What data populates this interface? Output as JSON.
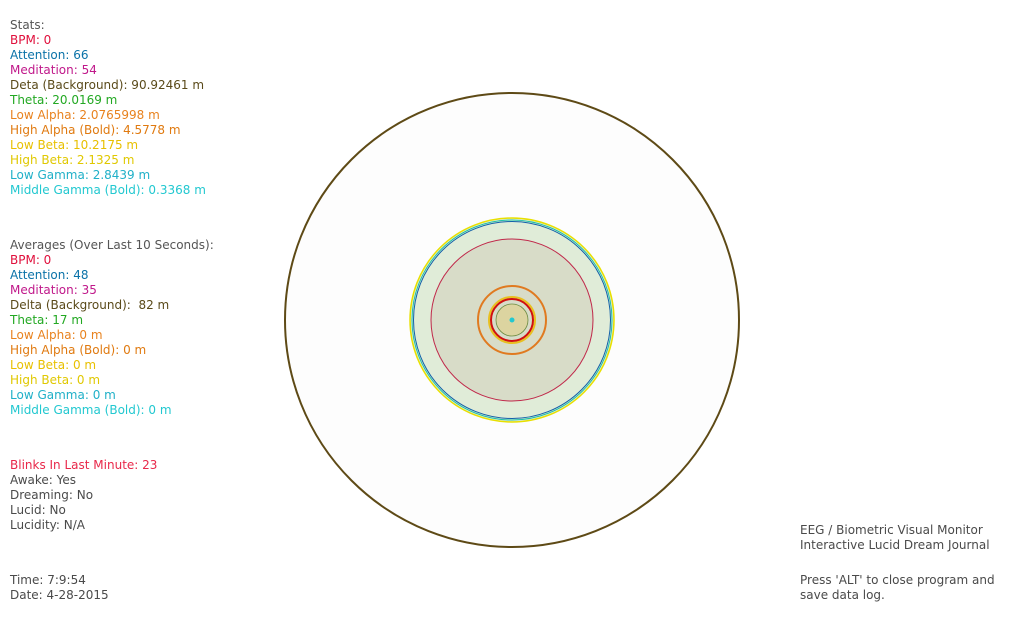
{
  "stats": {
    "heading": "Stats:",
    "items": [
      {
        "text": "BPM: 0",
        "color": "#e0103c"
      },
      {
        "text": "Attention: 66",
        "color": "#0a72a8"
      },
      {
        "text": "Meditation: 54",
        "color": "#c0188a"
      },
      {
        "text": "Deta (Background): 90.92461 m",
        "color": "#5a4a1a"
      },
      {
        "text": "Theta: 20.0169 m",
        "color": "#22a822"
      },
      {
        "text": "Low Alpha: 2.0765998 m",
        "color": "#e8821e"
      },
      {
        "text": "High Alpha (Bold): 4.5778 m",
        "color": "#e07a10"
      },
      {
        "text": "Low Beta: 10.2175 m",
        "color": "#e8c000"
      },
      {
        "text": "High Beta: 2.1325 m",
        "color": "#e0c800"
      },
      {
        "text": "Low Gamma: 2.8439 m",
        "color": "#20b0c8"
      },
      {
        "text": "Middle Gamma (Bold): 0.3368 m",
        "color": "#22c8d0"
      }
    ]
  },
  "averages": {
    "heading": "Averages (Over Last 10 Seconds):",
    "items": [
      {
        "text": "BPM: 0",
        "color": "#e0103c"
      },
      {
        "text": "Attention: 48",
        "color": "#0a72a8"
      },
      {
        "text": "Meditation: 35",
        "color": "#c0188a"
      },
      {
        "text": "Delta (Background):  82 m",
        "color": "#5a4a1a"
      },
      {
        "text": "Theta: 17 m",
        "color": "#22a822"
      },
      {
        "text": "Low Alpha: 0 m",
        "color": "#e8821e"
      },
      {
        "text": "High Alpha (Bold): 0 m",
        "color": "#e07a10"
      },
      {
        "text": "Low Beta: 0 m",
        "color": "#e8c000"
      },
      {
        "text": "High Beta: 0 m",
        "color": "#e0c800"
      },
      {
        "text": "Low Gamma: 0 m",
        "color": "#20b0c8"
      },
      {
        "text": "Middle Gamma (Bold): 0 m",
        "color": "#22c8d0"
      }
    ]
  },
  "status": {
    "blinks": "Blinks In Last Minute: 23",
    "blinks_color": "#e8284a",
    "awake": "Awake: Yes",
    "dreaming": "Dreaming: No",
    "lucid": "Lucid: No",
    "lucidity": "Lucidity: N/A"
  },
  "time": {
    "time": "Time: 7:9:54",
    "date": "Date: 4-28-2015"
  },
  "info": {
    "title_line1": "EEG / Biometric Visual Monitor",
    "title_line2": "Interactive Lucid Dream Journal",
    "exit_line1": "Press 'ALT' to close program and",
    "exit_line2": "save data log."
  },
  "colors": {
    "heading": "#555555",
    "plain_text": "#4a4a4a",
    "delta_ring": "#5e4a16",
    "outer_fill": "#fdfdfd",
    "theta_fill": "#e0ecd8",
    "beta_ring": "#e8e000",
    "gamma_ring": "#20c0a8",
    "attention_ring": "#1060a8",
    "meditation_ring": "#c0284a",
    "inner_fill": "#d8dcc8",
    "alpha_ring": "#e07a20",
    "bpm_ring": "#d01010",
    "center_fill": "#dcd4a0",
    "center_dot": "#22c8d0"
  }
}
